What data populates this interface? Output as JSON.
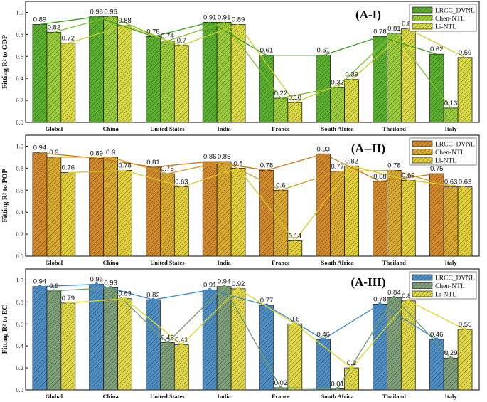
{
  "chart_data": [
    {
      "type": "bar",
      "title": "(A-I)",
      "ylabel": "Fitting R² to GDP",
      "ylim": [
        0,
        1.1
      ],
      "yticks": [
        "0.0",
        "0.2",
        "0.4",
        "0.6",
        "0.8",
        "1.0"
      ],
      "categories": [
        "Global",
        "China",
        "United States",
        "India",
        "France",
        "South Africa",
        "Thailand",
        "Italy"
      ],
      "series": [
        {
          "name": "LRCC_DVNL",
          "values": [
            0.89,
            0.96,
            0.78,
            0.91,
            0.61,
            0.61,
            0.78,
            0.62
          ],
          "labels": [
            "0.89",
            "0.96",
            "0.78",
            "0.91",
            "0.61",
            "0.61",
            "0.78",
            "0.62"
          ]
        },
        {
          "name": "Chen-NTL",
          "values": [
            0.82,
            0.96,
            0.74,
            0.91,
            0.22,
            0.32,
            0.81,
            0.13
          ],
          "labels": [
            "0.82",
            "0.96",
            "0.74",
            "0.91",
            "0.22",
            "0.32",
            "0.81",
            "0.13"
          ]
        },
        {
          "name": "Li-NTL",
          "values": [
            0.72,
            0.88,
            0.7,
            0.89,
            0.18,
            0.39,
            0.85,
            0.59
          ],
          "labels": [
            "0.72",
            "0.88",
            "0.7",
            "0.89",
            "0.18",
            "0.39",
            "0.85",
            "0.59"
          ]
        }
      ],
      "colors": [
        "#5cb030",
        "#9acc3e",
        "#dada46"
      ],
      "line_colors": [
        "#3c9a1e",
        "#7cc02a",
        "#c8cf2a"
      ]
    },
    {
      "type": "bar",
      "title": "(A--II)",
      "ylabel": "Fitting R² to POP",
      "ylim": [
        0,
        1.1
      ],
      "yticks": [
        "0.0",
        "0.2",
        "0.4",
        "0.6",
        "0.8",
        "1.0"
      ],
      "categories": [
        "Global",
        "China",
        "United States",
        "India",
        "France",
        "South Africa",
        "Thailand",
        "Italy"
      ],
      "series": [
        {
          "name": "LRCC_DVNL",
          "values": [
            0.94,
            0.89,
            0.81,
            0.86,
            0.78,
            0.93,
            0.68,
            0.75
          ],
          "labels": [
            "0.94",
            "0.89",
            "0.81",
            "0.86",
            "0.78",
            "0.93",
            "0.68",
            "0.75"
          ]
        },
        {
          "name": "Chen-NTL",
          "values": [
            0.9,
            0.9,
            0.75,
            0.86,
            0.6,
            0.77,
            0.78,
            0.63
          ],
          "labels": [
            "0.9",
            "0.9",
            "0.75",
            "0.86",
            "0.6",
            "0.77",
            "0.78",
            "0.63"
          ]
        },
        {
          "name": "Li-NTL",
          "values": [
            0.76,
            0.78,
            0.63,
            0.8,
            0.14,
            0.82,
            0.69,
            0.63
          ],
          "labels": [
            "0.76",
            "0.78",
            "0.63",
            "0.8",
            "0.14",
            "0.82",
            "0.69",
            "0.63"
          ]
        }
      ],
      "colors": [
        "#d38a2c",
        "#d9aa32",
        "#e2cf3c"
      ],
      "line_colors": [
        "#c47a1a",
        "#d19a22",
        "#dcc92a"
      ]
    },
    {
      "type": "bar",
      "title": "(A-III)",
      "ylabel": "Fitting R² to EC",
      "ylim": [
        0,
        1.1
      ],
      "yticks": [
        "0.0",
        "0.2",
        "0.4",
        "0.6",
        "0.8",
        "1.0"
      ],
      "categories": [
        "Global",
        "China",
        "United States",
        "India",
        "France",
        "South Africa",
        "Thailand",
        "Italy"
      ],
      "series": [
        {
          "name": "LRCC_DVNL",
          "values": [
            0.94,
            0.96,
            0.82,
            0.91,
            0.77,
            0.46,
            0.78,
            0.46
          ],
          "labels": [
            "0.94",
            "0.96",
            "0.82",
            "0.91",
            "0.77",
            "0.46",
            "0.78",
            "0.46"
          ]
        },
        {
          "name": "Chen-NTL",
          "values": [
            0.9,
            0.93,
            0.43,
            0.94,
            0.02,
            0.01,
            0.84,
            0.29
          ],
          "labels": [
            "0.9",
            "0.93",
            "0.43",
            "0.94",
            "0.02",
            "0.01",
            "0.84",
            "0.29"
          ]
        },
        {
          "name": "Li-NTL",
          "values": [
            0.79,
            0.83,
            0.41,
            0.92,
            0.6,
            0.2,
            0.81,
            0.55
          ],
          "labels": [
            "0.79",
            "0.83",
            "0.41",
            "0.92",
            "0.6",
            "0.2",
            "0.81",
            "0.55"
          ]
        }
      ],
      "colors": [
        "#4f8fc4",
        "#7fa07a",
        "#e0d84a"
      ],
      "line_colors": [
        "#3a86c8",
        "#6e9b6a",
        "#dcd826"
      ]
    }
  ]
}
